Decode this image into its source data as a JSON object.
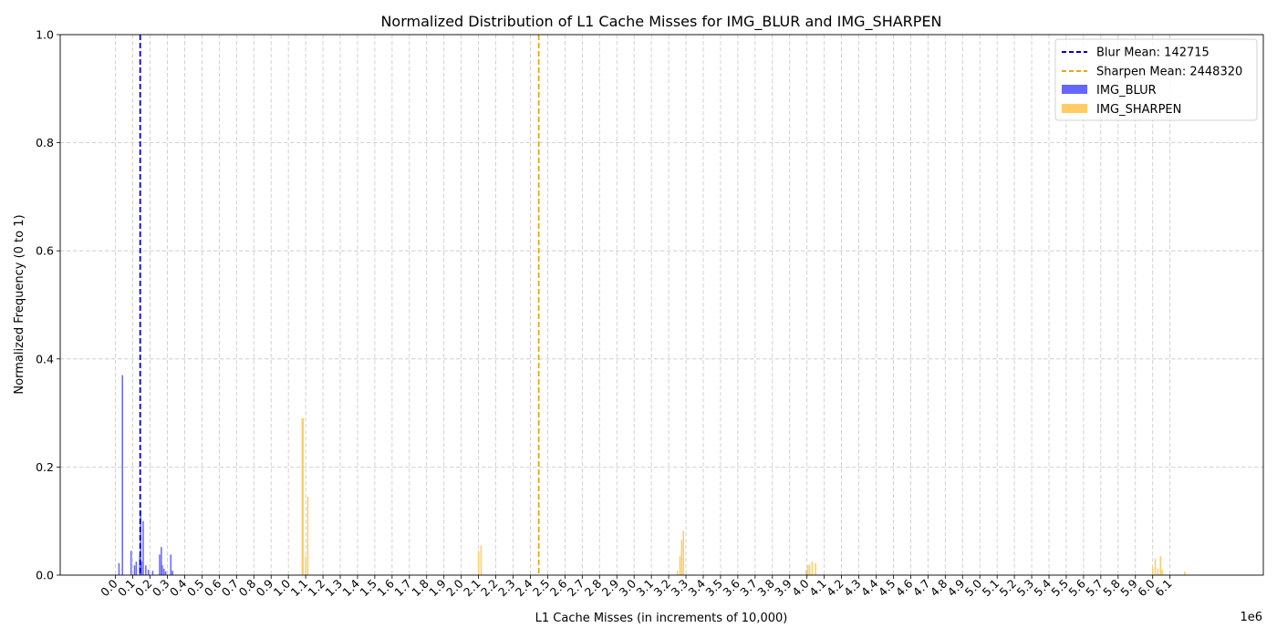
{
  "chart_data": {
    "type": "bar",
    "title": "Normalized Distribution of L1 Cache Misses for IMG_BLUR and IMG_SHARPEN",
    "xlabel": "L1 Cache Misses (in increments of 10,000)",
    "ylabel": "Normalized Frequency (0 to 1)",
    "x_offset_label": "1e6",
    "xlim": [
      -320000,
      6640000
    ],
    "ylim": [
      0,
      1
    ],
    "grid": true,
    "legend_position": "top-right",
    "x_ticks": [
      0,
      100000,
      200000,
      300000,
      400000,
      500000,
      600000,
      700000,
      800000,
      900000,
      1000000,
      1100000,
      1200000,
      1300000,
      1400000,
      1500000,
      1600000,
      1700000,
      1800000,
      1900000,
      2000000,
      2100000,
      2200000,
      2300000,
      2400000,
      2500000,
      2600000,
      2700000,
      2800000,
      2900000,
      3000000,
      3100000,
      3200000,
      3300000,
      3400000,
      3500000,
      3600000,
      3700000,
      3800000,
      3900000,
      4000000,
      4100000,
      4200000,
      4300000,
      4400000,
      4500000,
      4600000,
      4700000,
      4800000,
      4900000,
      5000000,
      5100000,
      5200000,
      5300000,
      5400000,
      5500000,
      5600000,
      5700000,
      5800000,
      5900000,
      6000000,
      6100000
    ],
    "x_tick_labels": [
      "0.0",
      "0.1",
      "0.2",
      "0.3",
      "0.4",
      "0.5",
      "0.6",
      "0.7",
      "0.8",
      "0.9",
      "1.0",
      "1.1",
      "1.2",
      "1.3",
      "1.4",
      "1.5",
      "1.6",
      "1.7",
      "1.8",
      "1.9",
      "2.0",
      "2.1",
      "2.2",
      "2.3",
      "2.4",
      "2.5",
      "2.6",
      "2.7",
      "2.8",
      "2.9",
      "3.0",
      "3.1",
      "3.2",
      "3.3",
      "3.4",
      "3.5",
      "3.6",
      "3.7",
      "3.8",
      "3.9",
      "4.0",
      "4.1",
      "4.2",
      "4.3",
      "4.4",
      "4.5",
      "4.6",
      "4.7",
      "4.8",
      "4.9",
      "5.0",
      "5.1",
      "5.2",
      "5.3",
      "5.4",
      "5.5",
      "5.6",
      "5.7",
      "5.8",
      "5.9",
      "6.0",
      "6.1"
    ],
    "y_ticks": [
      0,
      0.2,
      0.4,
      0.6,
      0.8,
      1.0
    ],
    "y_tick_labels": [
      "0.0",
      "0.2",
      "0.4",
      "0.6",
      "0.8",
      "1.0"
    ],
    "bar_width": 8000,
    "series": [
      {
        "name": "IMG_BLUR",
        "color": "#6666ff",
        "x": [
          20000,
          40000,
          90000,
          110000,
          120000,
          140000,
          145000,
          150000,
          160000,
          175000,
          190000,
          215000,
          255000,
          265000,
          270000,
          280000,
          290000,
          320000,
          330000
        ],
        "values": [
          0.022,
          0.37,
          0.045,
          0.018,
          0.025,
          0.035,
          0.12,
          0.025,
          0.1,
          0.018,
          0.01,
          0.008,
          0.038,
          0.052,
          0.018,
          0.012,
          0.007,
          0.038,
          0.008
        ]
      },
      {
        "name": "IMG_SHARPEN",
        "color": "#ffcc66",
        "x": [
          1080000,
          1085000,
          1100000,
          1112000,
          2100000,
          2115000,
          3250000,
          3265000,
          3275000,
          3285000,
          3995000,
          4005000,
          4015000,
          4030000,
          4050000,
          6000000,
          6015000,
          6030000,
          6045000,
          6055000,
          6185000
        ],
        "values": [
          0.29,
          0.29,
          0.035,
          0.145,
          0.045,
          0.055,
          0.008,
          0.035,
          0.065,
          0.082,
          0.01,
          0.018,
          0.02,
          0.025,
          0.022,
          0.015,
          0.03,
          0.012,
          0.035,
          0.01,
          0.006
        ]
      }
    ],
    "mean_lines": [
      {
        "name": "Blur Mean",
        "label": "Blur Mean: 142715",
        "value": 142715,
        "color": "#0000cc"
      },
      {
        "name": "Sharpen Mean",
        "label": "Sharpen Mean: 2448320",
        "value": 2448320,
        "color": "#e6a817"
      }
    ],
    "legend": {
      "entries": [
        {
          "label": "Blur Mean: 142715",
          "kind": "line",
          "color": "#0000cc"
        },
        {
          "label": "Sharpen Mean: 2448320",
          "kind": "line",
          "color": "#e6a817"
        },
        {
          "label": "IMG_BLUR",
          "kind": "patch",
          "color": "#6666ff"
        },
        {
          "label": "IMG_SHARPEN",
          "kind": "patch",
          "color": "#ffcc66"
        }
      ]
    }
  }
}
